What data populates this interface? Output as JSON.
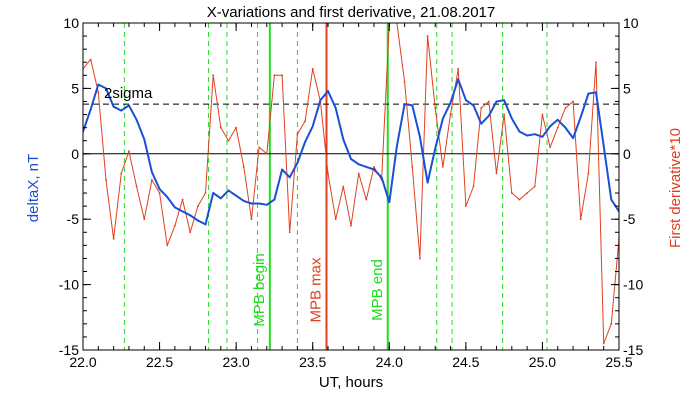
{
  "chart_data": {
    "type": "line",
    "title": "X-variations and first derivative, 21.08.2017",
    "xlabel": "UT, hours",
    "ylabel_left": "deltaX, nT",
    "ylabel_right": "First derivative*10",
    "xlim": [
      22.0,
      25.5
    ],
    "ylim_left": [
      -15,
      10
    ],
    "ylim_right": [
      -15,
      10
    ],
    "x_ticks": [
      "22.0",
      "22.5",
      "23.0",
      "23.5",
      "24.0",
      "24.5",
      "25.0",
      "25.5"
    ],
    "y_ticks_left": [
      "-15",
      "-10",
      "-5",
      "0",
      "5",
      "10"
    ],
    "y_ticks_right": [
      "-15",
      "-10",
      "-5",
      "0",
      "5",
      "10"
    ],
    "sigma_label": "2sigma",
    "sigma_level": 3.8,
    "zero_level": 0,
    "colors": {
      "deltaX": "#1a4fd6",
      "derivative": "#e0401f",
      "mpb": "#22dd22",
      "max": "#e0401f",
      "reference": "#000000"
    },
    "markers": [
      {
        "label": "MPB begin",
        "x": 23.22,
        "color": "#22dd22"
      },
      {
        "label": "MPB max",
        "x": 23.59,
        "color": "#e0401f"
      },
      {
        "label": "MPB end",
        "x": 23.99,
        "color": "#22dd22"
      }
    ],
    "green_dashed_x": [
      22.27,
      22.82,
      22.94,
      23.14,
      23.4,
      24.31,
      24.41,
      24.74,
      25.03
    ],
    "series": [
      {
        "name": "deltaX",
        "color": "#1a4fd6",
        "axis": "left",
        "x": [
          22.0,
          22.05,
          22.1,
          22.15,
          22.2,
          22.25,
          22.3,
          22.35,
          22.4,
          22.45,
          22.5,
          22.55,
          22.6,
          22.65,
          22.7,
          22.75,
          22.8,
          22.85,
          22.9,
          22.95,
          23.0,
          23.05,
          23.1,
          23.15,
          23.2,
          23.25,
          23.3,
          23.35,
          23.4,
          23.45,
          23.5,
          23.55,
          23.6,
          23.65,
          23.7,
          23.75,
          23.8,
          23.85,
          23.9,
          23.95,
          24.0,
          24.05,
          24.1,
          24.15,
          24.2,
          24.25,
          24.3,
          24.35,
          24.4,
          24.45,
          24.5,
          24.55,
          24.6,
          24.65,
          24.7,
          24.75,
          24.8,
          24.85,
          24.9,
          24.95,
          25.0,
          25.05,
          25.1,
          25.15,
          25.2,
          25.25,
          25.3,
          25.35,
          25.4,
          25.45,
          25.5
        ],
        "values": [
          1.7,
          3.4,
          5.3,
          5.0,
          3.6,
          3.3,
          3.7,
          2.6,
          1.1,
          -1.4,
          -2.7,
          -3.3,
          -4.1,
          -4.4,
          -4.7,
          -5.1,
          -5.4,
          -3.0,
          -3.4,
          -2.8,
          -3.2,
          -3.6,
          -3.8,
          -3.8,
          -3.9,
          -3.5,
          -1.2,
          -1.8,
          -0.7,
          0.9,
          2.1,
          4.1,
          4.8,
          3.5,
          1.1,
          -0.4,
          -0.8,
          -1.0,
          -1.2,
          -1.8,
          -3.7,
          0.6,
          3.8,
          3.7,
          1.3,
          -2.2,
          0.4,
          2.7,
          3.9,
          5.7,
          4.1,
          3.7,
          2.3,
          2.9,
          4.0,
          4.1,
          2.7,
          1.7,
          1.4,
          1.5,
          1.3,
          2.1,
          2.6,
          2.0,
          1.2,
          2.8,
          4.6,
          4.7,
          0.6,
          -3.5,
          -4.4
        ]
      },
      {
        "name": "First derivative*10",
        "color": "#e0401f",
        "axis": "right",
        "x": [
          22.0,
          22.05,
          22.1,
          22.15,
          22.2,
          22.25,
          22.3,
          22.35,
          22.4,
          22.45,
          22.5,
          22.55,
          22.6,
          22.65,
          22.7,
          22.75,
          22.8,
          22.85,
          22.9,
          22.95,
          23.0,
          23.05,
          23.1,
          23.15,
          23.2,
          23.25,
          23.3,
          23.35,
          23.4,
          23.45,
          23.5,
          23.55,
          23.6,
          23.65,
          23.7,
          23.75,
          23.8,
          23.85,
          23.9,
          23.95,
          24.0,
          24.05,
          24.1,
          24.15,
          24.2,
          24.25,
          24.3,
          24.35,
          24.4,
          24.45,
          24.5,
          24.55,
          24.6,
          24.65,
          24.7,
          24.75,
          24.8,
          24.85,
          24.9,
          24.95,
          25.0,
          25.05,
          25.1,
          25.15,
          25.2,
          25.25,
          25.3,
          25.35,
          25.4,
          25.45,
          25.5
        ],
        "values": [
          6.5,
          7.2,
          4.7,
          -2.0,
          -6.5,
          -1.5,
          0.2,
          -2.5,
          -5.0,
          -2.0,
          -3.0,
          -7.0,
          -5.5,
          -3.5,
          -6.0,
          -4.0,
          -3.0,
          6.0,
          2.0,
          1.0,
          2.0,
          -1.0,
          -5.0,
          0.5,
          0.0,
          6.0,
          6.0,
          -6.0,
          1.5,
          2.5,
          6.5,
          4.0,
          -1.5,
          -5.0,
          -2.5,
          -5.5,
          -1.5,
          -3.5,
          -1.0,
          -2.0,
          10.0,
          10.0,
          5.5,
          -1.0,
          -8.0,
          9.0,
          3.5,
          -1.0,
          3.0,
          6.5,
          -4.0,
          -2.5,
          3.5,
          4.0,
          -1.5,
          3.0,
          -3.0,
          -3.5,
          -3.0,
          -2.5,
          3.0,
          0.5,
          2.0,
          3.5,
          4.0,
          -5.0,
          -1.5,
          7.0,
          -14.5,
          -13.0,
          -6.5
        ]
      }
    ]
  }
}
